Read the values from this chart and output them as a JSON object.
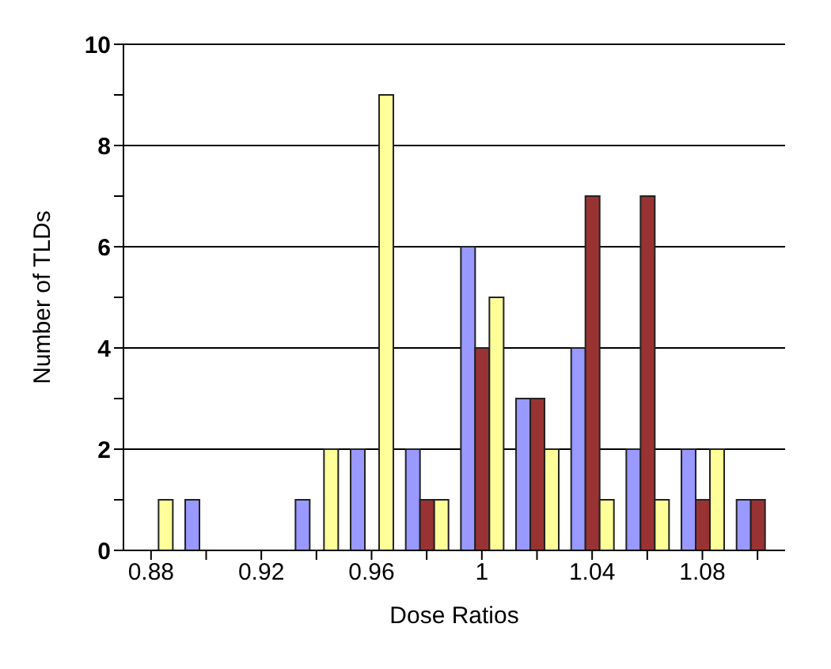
{
  "chart_data": {
    "type": "bar",
    "xlabel": "Dose Ratios",
    "ylabel": "Number of TLDs",
    "categories": [
      "0.88",
      null,
      "0.92",
      null,
      "0.96",
      null,
      "1",
      null,
      "1.04",
      null,
      "1.08",
      null
    ],
    "series": [
      {
        "color": "#9999ff",
        "values": [
          0,
          1,
          0,
          1,
          2,
          2,
          6,
          3,
          4,
          2,
          2,
          1
        ]
      },
      {
        "color": "#993333",
        "values": [
          0,
          0,
          0,
          0,
          0,
          1,
          4,
          3,
          7,
          7,
          1,
          1
        ]
      },
      {
        "color": "#ffff99",
        "values": [
          1,
          0,
          0,
          2,
          9,
          1,
          5,
          2,
          1,
          1,
          2,
          0
        ]
      }
    ],
    "ylim": [
      0,
      10
    ],
    "yticks": [
      0,
      {
        "value": 1,
        "label": null
      },
      2,
      {
        "value": 3,
        "label": null
      },
      4,
      {
        "value": 5,
        "label": null
      },
      6,
      {
        "value": 7,
        "label": null
      },
      8,
      {
        "value": 9,
        "label": null
      },
      10
    ],
    "grid": "y",
    "legend": false
  }
}
